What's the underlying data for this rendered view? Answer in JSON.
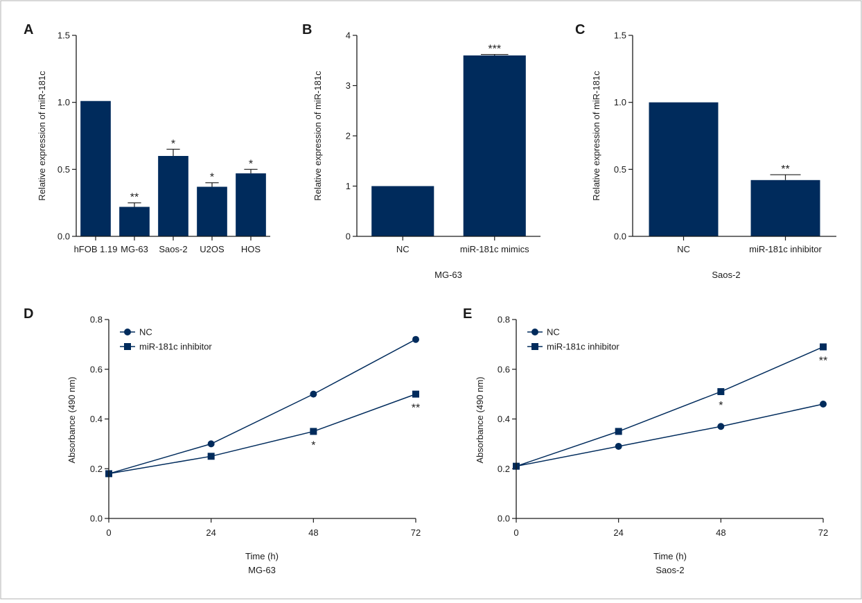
{
  "colors": {
    "bar": "#002b5c",
    "line": "#002b5c",
    "axis": "#1a1a1a",
    "border": "#b0b0b0"
  },
  "chart_data": [
    {
      "panel": "A",
      "type": "bar",
      "categories": [
        "hFOB 1.19",
        "MG-63",
        "Saos-2",
        "U2OS",
        "HOS"
      ],
      "values": [
        1.01,
        0.22,
        0.6,
        0.37,
        0.47
      ],
      "errors": [
        0.0,
        0.03,
        0.05,
        0.03,
        0.03
      ],
      "significance": [
        "",
        "**",
        "*",
        "*",
        "*"
      ],
      "ylabel": "Relative expression of miR-181c",
      "xlabel": "",
      "ylim": [
        0,
        1.5
      ],
      "yticks": [
        "0.0",
        "0.5",
        "1.0",
        "1.5"
      ],
      "ytick_values": [
        0,
        0.5,
        1.0,
        1.5
      ]
    },
    {
      "panel": "B",
      "type": "bar",
      "categories": [
        "NC",
        "miR-181c mimics"
      ],
      "values": [
        1.0,
        3.6
      ],
      "errors": [
        0.0,
        0.02
      ],
      "significance": [
        "",
        "***"
      ],
      "ylabel": "Relative expression of miR-181c",
      "xlabel": "MG-63",
      "ylim": [
        0,
        4
      ],
      "yticks": [
        "0",
        "1",
        "2",
        "3",
        "4"
      ],
      "ytick_values": [
        0,
        1,
        2,
        3,
        4
      ]
    },
    {
      "panel": "C",
      "type": "bar",
      "categories": [
        "NC",
        "miR-181c inhibitor"
      ],
      "values": [
        1.0,
        0.42
      ],
      "errors": [
        0.0,
        0.04
      ],
      "significance": [
        "",
        "**"
      ],
      "ylabel": "Relative expression of miR-181c",
      "xlabel": "Saos-2",
      "ylim": [
        0,
        1.5
      ],
      "yticks": [
        "0.0",
        "0.5",
        "1.0",
        "1.5"
      ],
      "ytick_values": [
        0,
        0.5,
        1.0,
        1.5
      ]
    },
    {
      "panel": "D",
      "type": "line",
      "x": [
        0,
        24,
        48,
        72
      ],
      "xticks": [
        "0",
        "24",
        "48",
        "72"
      ],
      "series": [
        {
          "name": "NC",
          "marker": "circle",
          "values": [
            0.18,
            0.3,
            0.5,
            0.72
          ],
          "significance": [
            "",
            "",
            "",
            ""
          ]
        },
        {
          "name": "miR-181c inhibitor",
          "marker": "square",
          "values": [
            0.18,
            0.25,
            0.35,
            0.5
          ],
          "significance": [
            "",
            "",
            "*",
            "**"
          ]
        }
      ],
      "ylabel": "Absorbance (490 nm)",
      "xlabel": "Time (h)",
      "sublabel": "MG-63",
      "ylim": [
        0,
        0.8
      ],
      "xlim": [
        0,
        72
      ],
      "yticks": [
        "0.0",
        "0.2",
        "0.4",
        "0.6",
        "0.8"
      ],
      "ytick_values": [
        0,
        0.2,
        0.4,
        0.6,
        0.8
      ],
      "legend": "top-left"
    },
    {
      "panel": "E",
      "type": "line",
      "x": [
        0,
        24,
        48,
        72
      ],
      "xticks": [
        "0",
        "24",
        "48",
        "72"
      ],
      "series": [
        {
          "name": "NC",
          "marker": "circle",
          "values": [
            0.21,
            0.29,
            0.37,
            0.46
          ],
          "significance": [
            "",
            "",
            "",
            ""
          ]
        },
        {
          "name": "miR-181c inhibitor",
          "marker": "square",
          "values": [
            0.21,
            0.35,
            0.51,
            0.69
          ],
          "significance": [
            "",
            "",
            "*",
            "**"
          ]
        }
      ],
      "ylabel": "Absorbance (490 nm)",
      "xlabel": "Time (h)",
      "sublabel": "Saos-2",
      "ylim": [
        0,
        0.8
      ],
      "xlim": [
        0,
        72
      ],
      "yticks": [
        "0.0",
        "0.2",
        "0.4",
        "0.6",
        "0.8"
      ],
      "ytick_values": [
        0,
        0.2,
        0.4,
        0.6,
        0.8
      ],
      "legend": "top-left"
    }
  ]
}
